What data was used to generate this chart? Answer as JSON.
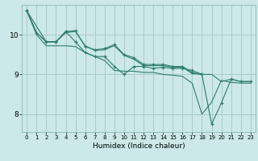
{
  "title": "",
  "xlabel": "Humidex (Indice chaleur)",
  "bg_color": "#cce8e8",
  "grid_color": "#aacccc",
  "line_color": "#2e7d6e",
  "xlim": [
    -0.5,
    23.5
  ],
  "ylim": [
    7.55,
    10.75
  ],
  "yticks": [
    8,
    9,
    10
  ],
  "xticks": [
    0,
    1,
    2,
    3,
    4,
    5,
    6,
    7,
    8,
    9,
    10,
    11,
    12,
    13,
    14,
    15,
    16,
    17,
    18,
    19,
    20,
    21,
    22,
    23
  ],
  "lines": [
    {
      "x": [
        0,
        1,
        2,
        3,
        4,
        5,
        6,
        7,
        8,
        9,
        10,
        11,
        12,
        13,
        14,
        15,
        16,
        17,
        18,
        19,
        20,
        21,
        22,
        23
      ],
      "y": [
        10.6,
        10.05,
        9.82,
        9.82,
        10.05,
        10.08,
        9.72,
        9.6,
        9.62,
        9.72,
        9.48,
        9.38,
        9.22,
        9.22,
        9.22,
        9.18,
        9.18,
        9.02,
        9.0,
        9.0,
        8.82,
        8.88,
        8.82,
        8.82
      ],
      "marker": false
    },
    {
      "x": [
        0,
        1,
        2,
        3,
        4,
        5,
        6,
        7,
        8,
        9,
        10,
        11,
        12,
        13,
        14,
        15,
        16,
        17,
        18
      ],
      "y": [
        10.6,
        10.05,
        9.82,
        9.82,
        10.08,
        10.1,
        9.7,
        9.62,
        9.65,
        9.75,
        9.5,
        9.42,
        9.25,
        9.25,
        9.25,
        9.2,
        9.2,
        9.05,
        9.0
      ],
      "marker": true
    },
    {
      "x": [
        0,
        2,
        3,
        4,
        5,
        6,
        7,
        8,
        9,
        10,
        11,
        12,
        13,
        14,
        15,
        16,
        17,
        18,
        19,
        20,
        21,
        22,
        23
      ],
      "y": [
        10.6,
        9.82,
        9.82,
        10.08,
        9.82,
        9.55,
        9.45,
        9.45,
        9.2,
        9.0,
        9.2,
        9.2,
        9.15,
        9.18,
        9.15,
        9.15,
        9.1,
        9.0,
        7.75,
        8.28,
        8.88,
        8.82,
        8.82
      ],
      "marker": true
    },
    {
      "x": [
        0,
        1,
        2,
        3,
        4,
        5,
        6,
        7,
        8,
        9,
        10,
        11,
        12,
        13,
        14,
        15,
        16,
        17,
        18,
        19,
        20,
        21,
        22,
        23
      ],
      "y": [
        10.6,
        10.0,
        9.72,
        9.72,
        9.72,
        9.7,
        9.55,
        9.45,
        9.35,
        9.1,
        9.08,
        9.08,
        9.05,
        9.05,
        9.0,
        8.98,
        8.95,
        8.78,
        8.0,
        8.3,
        8.85,
        8.8,
        8.78,
        8.78
      ],
      "marker": false
    }
  ]
}
